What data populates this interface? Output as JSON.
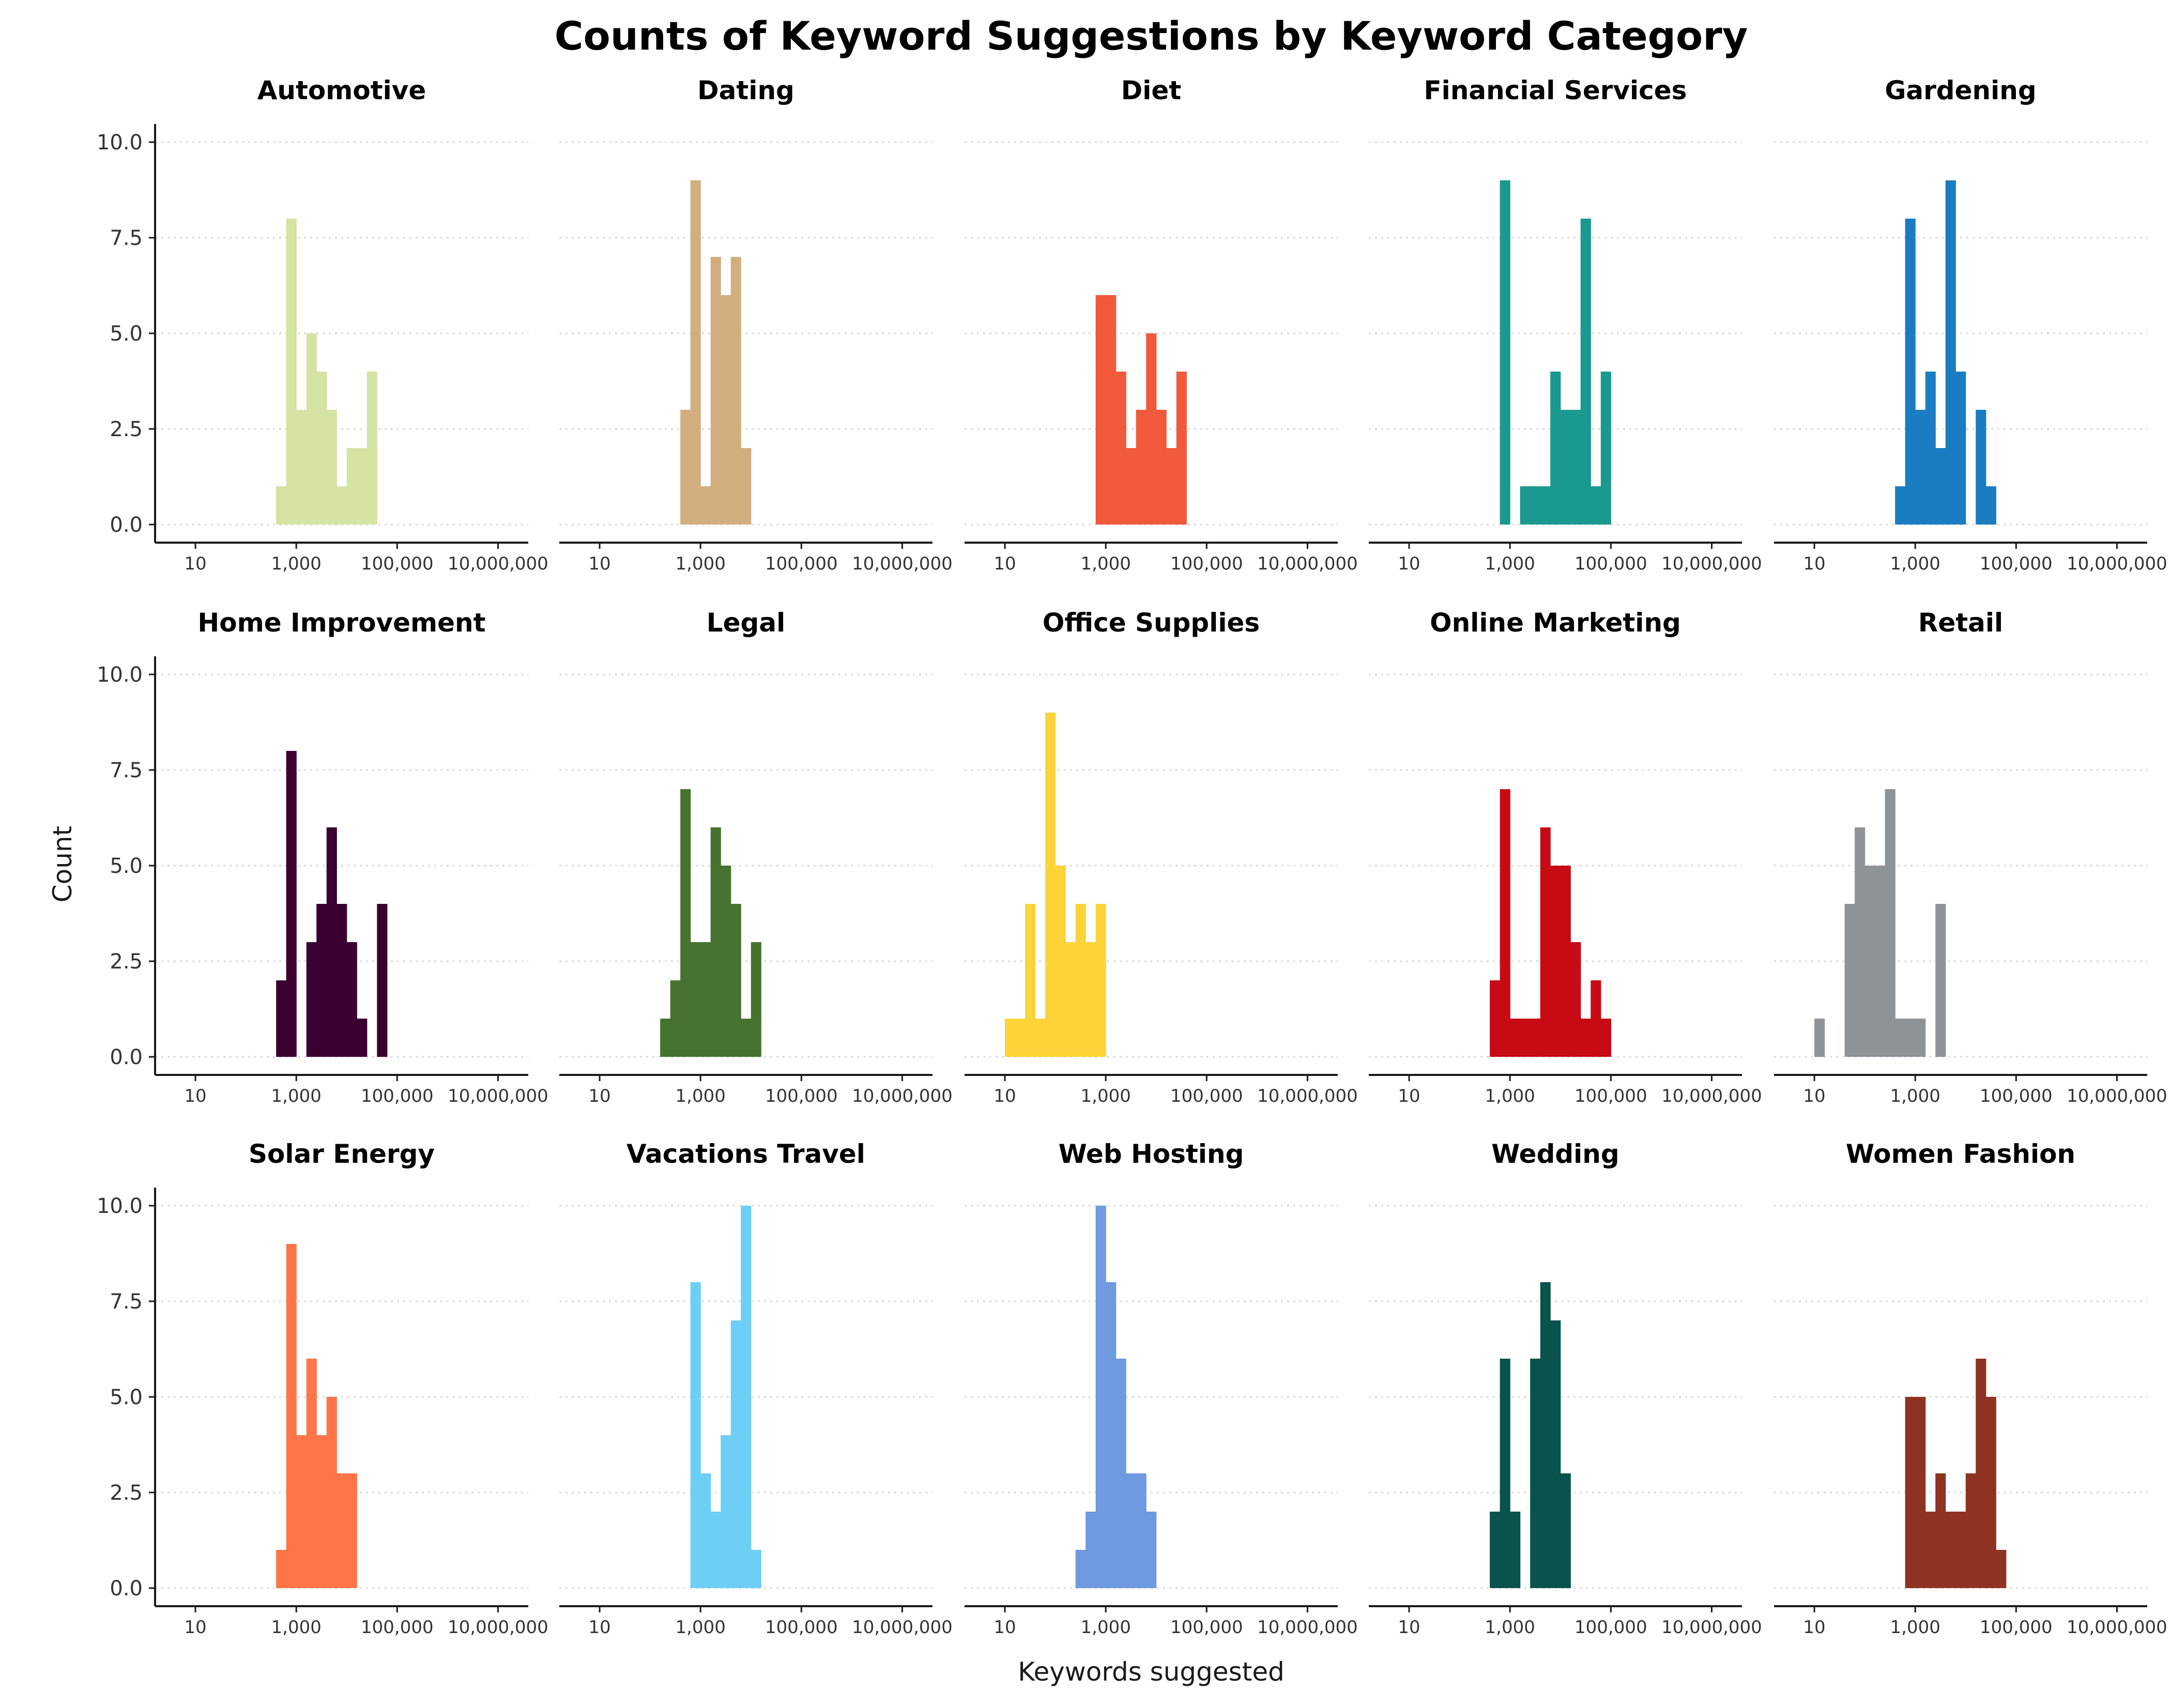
{
  "chart_data": {
    "type": "bar",
    "title": "Counts of Keyword Suggestions by Keyword Category",
    "xlabel": "Keywords suggested",
    "ylabel": "Count",
    "x_scale": "log10",
    "x_ticks": [
      10,
      1000,
      100000,
      10000000
    ],
    "x_tick_labels": [
      "10",
      "1,000",
      "100,000",
      "10,000,000"
    ],
    "x_bins_log10": [
      0.6,
      0.8,
      1.0,
      1.2,
      1.4,
      1.6,
      1.8,
      2.0,
      2.2,
      2.4,
      2.6,
      2.8,
      3.0,
      3.2,
      3.4,
      3.6,
      3.8,
      4.0,
      4.2,
      4.4,
      4.6,
      4.8,
      5.0,
      5.2,
      5.4,
      5.6,
      5.8,
      6.0,
      6.2,
      6.4,
      6.6,
      6.8,
      7.0,
      7.2,
      7.4
    ],
    "ylim": [
      0,
      10
    ],
    "y_ticks": [
      0,
      2.5,
      5,
      7.5,
      10
    ],
    "y_tick_labels": [
      "0.0",
      "2.5",
      "5.0",
      "7.5",
      "10.0"
    ],
    "grid": "horizontal dotted",
    "legend": "none",
    "facets": [
      {
        "name": "Automotive",
        "color": "#d5e3a3",
        "start_log10": 2.6,
        "counts": [
          1,
          8,
          3,
          5,
          4,
          3,
          1,
          2,
          2,
          4
        ]
      },
      {
        "name": "Dating",
        "color": "#d2ae7f",
        "start_log10": 2.6,
        "counts": [
          3,
          9,
          1,
          7,
          6,
          7,
          2
        ]
      },
      {
        "name": "Diet",
        "color": "#f05a3a",
        "start_log10": 2.8,
        "counts": [
          6,
          6,
          4,
          2,
          3,
          5,
          3,
          2,
          4
        ]
      },
      {
        "name": "Financial Services",
        "color": "#1a9990",
        "start_log10": 2.8,
        "counts": [
          9,
          0,
          1,
          1,
          1,
          4,
          3,
          3,
          8,
          1,
          4
        ]
      },
      {
        "name": "Gardening",
        "color": "#1a7dc2",
        "start_log10": 2.6,
        "counts": [
          1,
          8,
          3,
          4,
          2,
          9,
          4,
          0,
          3,
          1
        ]
      },
      {
        "name": "Home Improvement",
        "color": "#3a0030",
        "start_log10": 2.6,
        "counts": [
          2,
          8,
          0,
          3,
          4,
          6,
          4,
          3,
          1,
          0,
          4
        ]
      },
      {
        "name": "Legal",
        "color": "#477330",
        "start_log10": 2.2,
        "counts": [
          1,
          2,
          7,
          3,
          3,
          6,
          5,
          4,
          1,
          3
        ]
      },
      {
        "name": "Office Supplies",
        "color": "#fed338",
        "start_log10": 1.0,
        "counts": [
          1,
          1,
          4,
          1,
          9,
          5,
          3,
          4,
          3,
          4
        ]
      },
      {
        "name": "Online Marketing",
        "color": "#c80a14",
        "start_log10": 2.6,
        "counts": [
          2,
          7,
          1,
          1,
          1,
          6,
          5,
          5,
          3,
          1,
          2,
          1
        ]
      },
      {
        "name": "Retail",
        "color": "#8e9398",
        "start_log10": 1.0,
        "counts": [
          1,
          0,
          0,
          4,
          6,
          5,
          5,
          7,
          1,
          1,
          1,
          0,
          4
        ]
      },
      {
        "name": "Solar Energy",
        "color": "#ff7548",
        "start_log10": 2.6,
        "counts": [
          1,
          9,
          4,
          6,
          4,
          5,
          3,
          3
        ]
      },
      {
        "name": "Vacations Travel",
        "color": "#6ecff6",
        "start_log10": 2.8,
        "counts": [
          8,
          3,
          2,
          4,
          7,
          10,
          1
        ]
      },
      {
        "name": "Web Hosting",
        "color": "#6f9ae0",
        "start_log10": 2.4,
        "counts": [
          1,
          2,
          10,
          8,
          6,
          3,
          3,
          2
        ]
      },
      {
        "name": "Wedding",
        "color": "#08534c",
        "start_log10": 2.6,
        "counts": [
          2,
          6,
          2,
          0,
          6,
          8,
          7,
          3
        ]
      },
      {
        "name": "Women Fashion",
        "color": "#8e3323",
        "start_log10": 2.8,
        "counts": [
          5,
          5,
          2,
          3,
          2,
          2,
          3,
          6,
          5,
          1
        ]
      }
    ]
  }
}
